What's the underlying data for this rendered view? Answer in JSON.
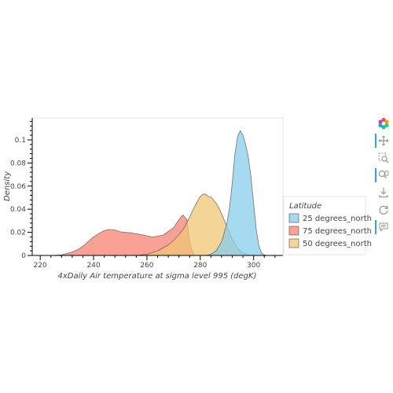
{
  "chart_data": {
    "type": "area",
    "title": "",
    "xlabel": "4xDaily Air temperature at sigma level 995 (degK)",
    "ylabel": "Density",
    "xlim": [
      217,
      311
    ],
    "ylim": [
      0,
      0.119
    ],
    "x_ticks": [
      220,
      240,
      260,
      280,
      300
    ],
    "y_ticks": [
      0,
      0.02,
      0.04,
      0.06,
      0.08,
      0.1
    ],
    "y_tick_labels": [
      "0",
      "0.02",
      "0.04",
      "0.06",
      "0.08",
      "0.1"
    ],
    "grid": false,
    "legend": {
      "title": "Latitude",
      "placement": "right"
    },
    "series": [
      {
        "name": "75 degrees_north",
        "color": "#fa8072",
        "x": [
          224,
          228,
          232,
          234,
          236,
          238,
          240,
          242,
          244,
          246,
          248,
          250,
          254,
          258,
          262,
          266,
          270,
          272,
          273.5,
          275,
          276,
          277,
          278
        ],
        "y": [
          0,
          0.0005,
          0.003,
          0.005,
          0.008,
          0.012,
          0.016,
          0.019,
          0.0215,
          0.0225,
          0.022,
          0.0205,
          0.0195,
          0.018,
          0.016,
          0.0175,
          0.024,
          0.031,
          0.035,
          0.031,
          0.012,
          0.003,
          0
        ]
      },
      {
        "name": "50 degrees_north",
        "color": "#f0c674",
        "x": [
          256,
          260,
          264,
          268,
          270,
          272,
          274,
          276,
          278,
          280,
          281,
          282,
          283,
          284,
          285,
          286,
          287,
          288,
          290,
          292,
          294,
          296,
          298,
          300
        ],
        "y": [
          0,
          0.001,
          0.004,
          0.009,
          0.013,
          0.018,
          0.024,
          0.033,
          0.043,
          0.051,
          0.053,
          0.053,
          0.051,
          0.0505,
          0.048,
          0.045,
          0.041,
          0.036,
          0.025,
          0.014,
          0.006,
          0.002,
          0.0005,
          0
        ]
      },
      {
        "name": "25 degrees_north",
        "color": "#87ceeb",
        "x": [
          282,
          284,
          286,
          288,
          290,
          291,
          292,
          293,
          294,
          295,
          296,
          297,
          298,
          299,
          300,
          301,
          302,
          303,
          304,
          305
        ],
        "y": [
          0,
          0.001,
          0.004,
          0.012,
          0.028,
          0.042,
          0.063,
          0.088,
          0.103,
          0.108,
          0.104,
          0.096,
          0.085,
          0.068,
          0.045,
          0.022,
          0.008,
          0.002,
          0.0005,
          0
        ]
      }
    ],
    "legend_order": [
      "25 degrees_north",
      "75 degrees_north",
      "50 degrees_north"
    ]
  },
  "toolbar": {
    "tools": [
      {
        "name": "bokeh-logo-icon",
        "interactable": false,
        "active": false
      },
      {
        "name": "pan-icon",
        "interactable": true,
        "active": true
      },
      {
        "name": "box-zoom-icon",
        "interactable": true,
        "active": false
      },
      {
        "name": "wheel-zoom-icon",
        "interactable": true,
        "active": true
      },
      {
        "name": "save-icon",
        "interactable": true,
        "active": false
      },
      {
        "name": "reset-icon",
        "interactable": true,
        "active": false
      },
      {
        "name": "hover-icon",
        "interactable": true,
        "active": true
      }
    ]
  }
}
